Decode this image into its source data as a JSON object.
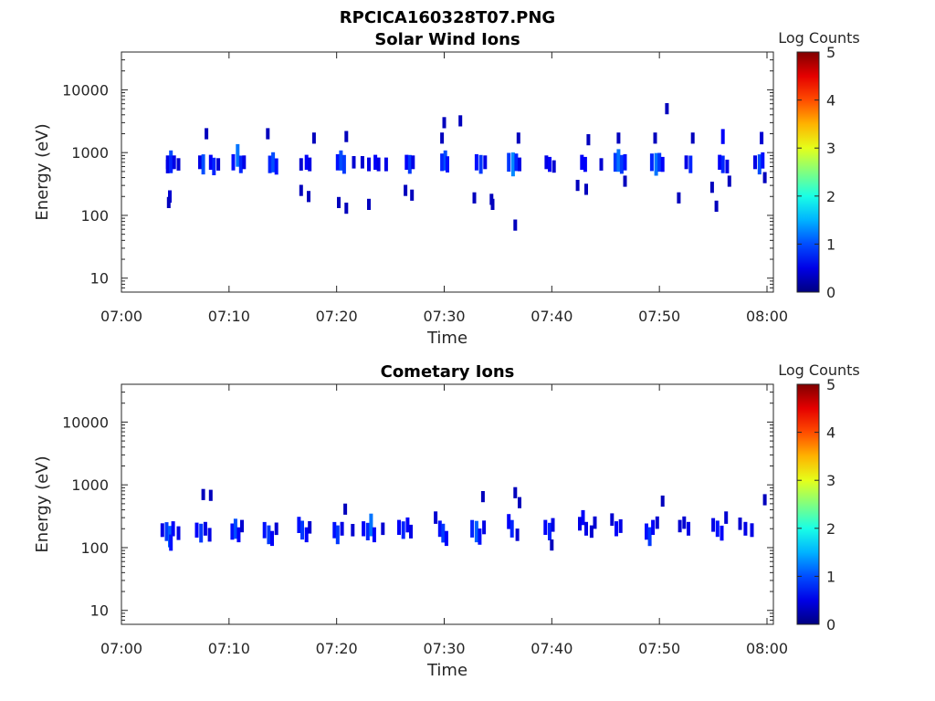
{
  "figure": {
    "title": "RPCICA160328T07.PNG"
  },
  "chart_data": [
    {
      "type": "heatmap",
      "title": "Solar Wind Ions",
      "xlabel": "Time",
      "ylabel": "Energy (eV)",
      "x_range": [
        "07:00",
        "08:00"
      ],
      "x_tick_labels": [
        "07:00",
        "07:10",
        "07:20",
        "07:30",
        "07:40",
        "07:50",
        "08:00"
      ],
      "y_scale": "log",
      "ylim": [
        6,
        40000
      ],
      "y_ticks": [
        10,
        100,
        1000,
        10000
      ],
      "y_tick_labels": [
        "10",
        "100",
        "1000",
        "10000"
      ],
      "colorbar": {
        "label": "Log Counts",
        "range": [
          0,
          5
        ],
        "tick_labels": [
          "0",
          "1",
          "2",
          "3",
          "4",
          "5"
        ],
        "colormap": "jet"
      },
      "grid": false,
      "points": [
        {
          "t": 4.3,
          "e": 700,
          "v": 0.5
        },
        {
          "t": 4.3,
          "e": 600,
          "v": 0.5
        },
        {
          "t": 4.6,
          "e": 750,
          "v": 1.0
        },
        {
          "t": 4.6,
          "e": 650,
          "v": 0.8
        },
        {
          "t": 4.9,
          "e": 700,
          "v": 0.5
        },
        {
          "t": 5.3,
          "e": 650,
          "v": 0.4
        },
        {
          "t": 4.5,
          "e": 200,
          "v": 0.4
        },
        {
          "t": 4.4,
          "e": 160,
          "v": 0.3
        },
        {
          "t": 7.3,
          "e": 700,
          "v": 0.5
        },
        {
          "t": 7.6,
          "e": 650,
          "v": 1.0
        },
        {
          "t": 7.9,
          "e": 2000,
          "v": 0.3
        },
        {
          "t": 8.3,
          "e": 700,
          "v": 0.6
        },
        {
          "t": 8.6,
          "e": 600,
          "v": 0.8
        },
        {
          "t": 9.0,
          "e": 650,
          "v": 0.4
        },
        {
          "t": 10.4,
          "e": 700,
          "v": 0.7
        },
        {
          "t": 10.8,
          "e": 900,
          "v": 1.2
        },
        {
          "t": 11.1,
          "e": 650,
          "v": 0.8
        },
        {
          "t": 11.4,
          "e": 700,
          "v": 0.5
        },
        {
          "t": 13.6,
          "e": 2000,
          "v": 0.3
        },
        {
          "t": 13.8,
          "e": 650,
          "v": 0.8
        },
        {
          "t": 14.1,
          "e": 700,
          "v": 1.0
        },
        {
          "t": 14.4,
          "e": 600,
          "v": 0.7
        },
        {
          "t": 16.7,
          "e": 650,
          "v": 0.4
        },
        {
          "t": 16.7,
          "e": 250,
          "v": 0.3
        },
        {
          "t": 17.2,
          "e": 700,
          "v": 0.6
        },
        {
          "t": 17.5,
          "e": 650,
          "v": 0.5
        },
        {
          "t": 17.9,
          "e": 1700,
          "v": 0.3
        },
        {
          "t": 17.4,
          "e": 200,
          "v": 0.3
        },
        {
          "t": 20.1,
          "e": 700,
          "v": 0.7
        },
        {
          "t": 20.4,
          "e": 750,
          "v": 1.0
        },
        {
          "t": 20.7,
          "e": 650,
          "v": 0.9
        },
        {
          "t": 20.9,
          "e": 1800,
          "v": 0.3
        },
        {
          "t": 20.2,
          "e": 160,
          "v": 0.3
        },
        {
          "t": 20.9,
          "e": 130,
          "v": 0.3
        },
        {
          "t": 21.6,
          "e": 700,
          "v": 0.4
        },
        {
          "t": 22.4,
          "e": 700,
          "v": 0.4
        },
        {
          "t": 23.0,
          "e": 650,
          "v": 0.5
        },
        {
          "t": 23.6,
          "e": 700,
          "v": 0.6
        },
        {
          "t": 23.9,
          "e": 650,
          "v": 0.5
        },
        {
          "t": 24.6,
          "e": 650,
          "v": 0.5
        },
        {
          "t": 23.0,
          "e": 150,
          "v": 0.3
        },
        {
          "t": 26.5,
          "e": 700,
          "v": 0.6
        },
        {
          "t": 26.8,
          "e": 650,
          "v": 0.9
        },
        {
          "t": 27.1,
          "e": 700,
          "v": 0.5
        },
        {
          "t": 26.4,
          "e": 250,
          "v": 0.3
        },
        {
          "t": 27.0,
          "e": 210,
          "v": 0.3
        },
        {
          "t": 29.8,
          "e": 700,
          "v": 0.8
        },
        {
          "t": 30.1,
          "e": 750,
          "v": 1.0
        },
        {
          "t": 30.3,
          "e": 650,
          "v": 0.7
        },
        {
          "t": 29.8,
          "e": 1700,
          "v": 0.3
        },
        {
          "t": 30.0,
          "e": 3000,
          "v": 0.3
        },
        {
          "t": 31.5,
          "e": 3200,
          "v": 0.3
        },
        {
          "t": 33.0,
          "e": 700,
          "v": 0.7
        },
        {
          "t": 33.4,
          "e": 650,
          "v": 0.9
        },
        {
          "t": 33.8,
          "e": 700,
          "v": 0.5
        },
        {
          "t": 32.8,
          "e": 190,
          "v": 0.3
        },
        {
          "t": 34.4,
          "e": 180,
          "v": 0.3
        },
        {
          "t": 34.5,
          "e": 150,
          "v": 0.3
        },
        {
          "t": 36.0,
          "e": 700,
          "v": 0.9
        },
        {
          "t": 36.4,
          "e": 650,
          "v": 1.3
        },
        {
          "t": 36.7,
          "e": 700,
          "v": 0.8
        },
        {
          "t": 36.9,
          "e": 1700,
          "v": 0.3
        },
        {
          "t": 37.0,
          "e": 650,
          "v": 0.5
        },
        {
          "t": 36.6,
          "e": 70,
          "v": 0.3
        },
        {
          "t": 39.5,
          "e": 700,
          "v": 0.5
        },
        {
          "t": 39.8,
          "e": 650,
          "v": 0.6
        },
        {
          "t": 40.2,
          "e": 600,
          "v": 0.4
        },
        {
          "t": 42.8,
          "e": 700,
          "v": 0.6
        },
        {
          "t": 43.1,
          "e": 650,
          "v": 0.6
        },
        {
          "t": 43.4,
          "e": 1600,
          "v": 0.3
        },
        {
          "t": 42.4,
          "e": 300,
          "v": 0.3
        },
        {
          "t": 43.2,
          "e": 260,
          "v": 0.3
        },
        {
          "t": 44.6,
          "e": 650,
          "v": 0.4
        },
        {
          "t": 45.9,
          "e": 700,
          "v": 0.9
        },
        {
          "t": 46.2,
          "e": 750,
          "v": 1.2
        },
        {
          "t": 46.5,
          "e": 650,
          "v": 0.9
        },
        {
          "t": 46.8,
          "e": 700,
          "v": 0.7
        },
        {
          "t": 46.2,
          "e": 1700,
          "v": 0.3
        },
        {
          "t": 46.8,
          "e": 350,
          "v": 0.3
        },
        {
          "t": 49.3,
          "e": 700,
          "v": 0.8
        },
        {
          "t": 49.7,
          "e": 650,
          "v": 1.2
        },
        {
          "t": 50.0,
          "e": 700,
          "v": 0.9
        },
        {
          "t": 50.3,
          "e": 650,
          "v": 0.6
        },
        {
          "t": 49.6,
          "e": 1700,
          "v": 0.3
        },
        {
          "t": 50.7,
          "e": 5000,
          "v": 0.3
        },
        {
          "t": 52.5,
          "e": 700,
          "v": 0.5
        },
        {
          "t": 52.9,
          "e": 650,
          "v": 0.8
        },
        {
          "t": 53.1,
          "e": 1700,
          "v": 0.3
        },
        {
          "t": 51.8,
          "e": 190,
          "v": 0.3
        },
        {
          "t": 54.9,
          "e": 280,
          "v": 0.3
        },
        {
          "t": 55.3,
          "e": 140,
          "v": 0.3
        },
        {
          "t": 55.6,
          "e": 700,
          "v": 0.6
        },
        {
          "t": 55.9,
          "e": 650,
          "v": 0.8
        },
        {
          "t": 56.3,
          "e": 600,
          "v": 0.5
        },
        {
          "t": 56.5,
          "e": 350,
          "v": 0.3
        },
        {
          "t": 55.9,
          "e": 1800,
          "v": 0.6
        },
        {
          "t": 58.9,
          "e": 700,
          "v": 0.5
        },
        {
          "t": 59.3,
          "e": 650,
          "v": 1.0
        },
        {
          "t": 59.6,
          "e": 750,
          "v": 0.7
        },
        {
          "t": 59.5,
          "e": 1700,
          "v": 0.4
        },
        {
          "t": 59.8,
          "e": 400,
          "v": 0.3
        }
      ]
    },
    {
      "type": "heatmap",
      "title": "Cometary Ions",
      "xlabel": "Time",
      "ylabel": "Energy (eV)",
      "x_range": [
        "07:00",
        "08:00"
      ],
      "x_tick_labels": [
        "07:00",
        "07:10",
        "07:20",
        "07:30",
        "07:40",
        "07:50",
        "08:00"
      ],
      "y_scale": "log",
      "ylim": [
        6,
        40000
      ],
      "y_ticks": [
        10,
        100,
        1000,
        10000
      ],
      "y_tick_labels": [
        "10",
        "100",
        "1000",
        "10000"
      ],
      "colorbar": {
        "label": "Log Counts",
        "range": [
          0,
          5
        ],
        "tick_labels": [
          "0",
          "1",
          "2",
          "3",
          "4",
          "5"
        ],
        "colormap": "jet"
      },
      "grid": false,
      "points": [
        {
          "t": 3.8,
          "e": 190,
          "v": 0.5
        },
        {
          "t": 4.2,
          "e": 180,
          "v": 0.9
        },
        {
          "t": 4.5,
          "e": 150,
          "v": 1.1
        },
        {
          "t": 4.8,
          "e": 200,
          "v": 0.6
        },
        {
          "t": 5.3,
          "e": 170,
          "v": 0.5
        },
        {
          "t": 4.6,
          "e": 120,
          "v": 0.7
        },
        {
          "t": 7.0,
          "e": 190,
          "v": 0.6
        },
        {
          "t": 7.4,
          "e": 170,
          "v": 0.9
        },
        {
          "t": 7.8,
          "e": 200,
          "v": 0.5
        },
        {
          "t": 8.2,
          "e": 160,
          "v": 0.5
        },
        {
          "t": 7.6,
          "e": 700,
          "v": 0.3
        },
        {
          "t": 8.3,
          "e": 680,
          "v": 0.3
        },
        {
          "t": 10.3,
          "e": 180,
          "v": 0.7
        },
        {
          "t": 10.6,
          "e": 200,
          "v": 1.0
        },
        {
          "t": 10.9,
          "e": 160,
          "v": 0.6
        },
        {
          "t": 11.2,
          "e": 220,
          "v": 0.4
        },
        {
          "t": 13.3,
          "e": 190,
          "v": 0.7
        },
        {
          "t": 13.7,
          "e": 160,
          "v": 0.9
        },
        {
          "t": 14.0,
          "e": 140,
          "v": 0.6
        },
        {
          "t": 14.4,
          "e": 200,
          "v": 0.4
        },
        {
          "t": 16.5,
          "e": 230,
          "v": 0.7
        },
        {
          "t": 16.8,
          "e": 190,
          "v": 0.9
        },
        {
          "t": 17.2,
          "e": 160,
          "v": 0.6
        },
        {
          "t": 17.5,
          "e": 210,
          "v": 0.4
        },
        {
          "t": 19.8,
          "e": 190,
          "v": 0.7
        },
        {
          "t": 20.1,
          "e": 160,
          "v": 0.9
        },
        {
          "t": 20.5,
          "e": 200,
          "v": 0.5
        },
        {
          "t": 20.8,
          "e": 410,
          "v": 0.3
        },
        {
          "t": 21.5,
          "e": 190,
          "v": 0.4
        },
        {
          "t": 22.5,
          "e": 200,
          "v": 0.6
        },
        {
          "t": 22.9,
          "e": 180,
          "v": 0.8
        },
        {
          "t": 23.2,
          "e": 230,
          "v": 1.2
        },
        {
          "t": 23.5,
          "e": 160,
          "v": 0.6
        },
        {
          "t": 24.3,
          "e": 200,
          "v": 0.4
        },
        {
          "t": 25.8,
          "e": 210,
          "v": 0.6
        },
        {
          "t": 26.2,
          "e": 190,
          "v": 0.8
        },
        {
          "t": 26.6,
          "e": 230,
          "v": 0.6
        },
        {
          "t": 26.9,
          "e": 180,
          "v": 0.5
        },
        {
          "t": 29.2,
          "e": 300,
          "v": 0.4
        },
        {
          "t": 29.6,
          "e": 200,
          "v": 0.7
        },
        {
          "t": 29.9,
          "e": 170,
          "v": 0.9
        },
        {
          "t": 30.2,
          "e": 140,
          "v": 0.6
        },
        {
          "t": 32.6,
          "e": 200,
          "v": 0.8
        },
        {
          "t": 33.0,
          "e": 180,
          "v": 1.1
        },
        {
          "t": 33.3,
          "e": 150,
          "v": 0.7
        },
        {
          "t": 33.7,
          "e": 210,
          "v": 0.5
        },
        {
          "t": 33.6,
          "e": 650,
          "v": 0.3
        },
        {
          "t": 36.0,
          "e": 260,
          "v": 0.6
        },
        {
          "t": 36.3,
          "e": 200,
          "v": 0.8
        },
        {
          "t": 36.6,
          "e": 750,
          "v": 0.3
        },
        {
          "t": 37.0,
          "e": 520,
          "v": 0.3
        },
        {
          "t": 36.8,
          "e": 160,
          "v": 0.4
        },
        {
          "t": 39.4,
          "e": 210,
          "v": 0.6
        },
        {
          "t": 39.8,
          "e": 180,
          "v": 0.8
        },
        {
          "t": 40.1,
          "e": 230,
          "v": 0.5
        },
        {
          "t": 40.0,
          "e": 110,
          "v": 0.3
        },
        {
          "t": 42.6,
          "e": 240,
          "v": 0.5
        },
        {
          "t": 42.9,
          "e": 300,
          "v": 0.6
        },
        {
          "t": 43.2,
          "e": 200,
          "v": 0.5
        },
        {
          "t": 43.7,
          "e": 180,
          "v": 0.4
        },
        {
          "t": 44.0,
          "e": 250,
          "v": 0.4
        },
        {
          "t": 45.6,
          "e": 280,
          "v": 0.4
        },
        {
          "t": 46.0,
          "e": 200,
          "v": 0.6
        },
        {
          "t": 46.4,
          "e": 220,
          "v": 0.5
        },
        {
          "t": 48.8,
          "e": 180,
          "v": 0.7
        },
        {
          "t": 49.1,
          "e": 150,
          "v": 0.9
        },
        {
          "t": 49.4,
          "e": 210,
          "v": 0.6
        },
        {
          "t": 49.8,
          "e": 250,
          "v": 0.4
        },
        {
          "t": 50.3,
          "e": 550,
          "v": 0.3
        },
        {
          "t": 51.9,
          "e": 220,
          "v": 0.4
        },
        {
          "t": 52.3,
          "e": 250,
          "v": 0.4
        },
        {
          "t": 52.7,
          "e": 200,
          "v": 0.5
        },
        {
          "t": 55.0,
          "e": 230,
          "v": 0.5
        },
        {
          "t": 55.4,
          "e": 200,
          "v": 0.7
        },
        {
          "t": 55.8,
          "e": 170,
          "v": 0.6
        },
        {
          "t": 56.2,
          "e": 300,
          "v": 0.4
        },
        {
          "t": 57.5,
          "e": 240,
          "v": 0.4
        },
        {
          "t": 58.0,
          "e": 200,
          "v": 0.5
        },
        {
          "t": 58.6,
          "e": 190,
          "v": 0.5
        },
        {
          "t": 59.8,
          "e": 580,
          "v": 0.3
        }
      ]
    }
  ]
}
